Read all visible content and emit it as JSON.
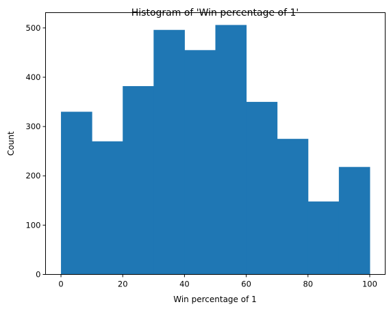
{
  "chart_data": {
    "type": "bar",
    "title": "Histogram of 'Win percentage of 1'",
    "xlabel": "Win percentage of 1",
    "ylabel": "Count",
    "bin_edges": [
      0,
      10,
      20,
      30,
      40,
      50,
      60,
      70,
      80,
      90,
      100
    ],
    "values": [
      330,
      270,
      382,
      496,
      455,
      506,
      350,
      275,
      148,
      218
    ],
    "xlim": [
      -5,
      105
    ],
    "ylim": [
      0,
      531
    ],
    "xticks": [
      0,
      20,
      40,
      60,
      80,
      100
    ],
    "yticks": [
      0,
      100,
      200,
      300,
      400,
      500
    ],
    "grid": false,
    "colors": {
      "bar": "#1f77b4"
    }
  }
}
